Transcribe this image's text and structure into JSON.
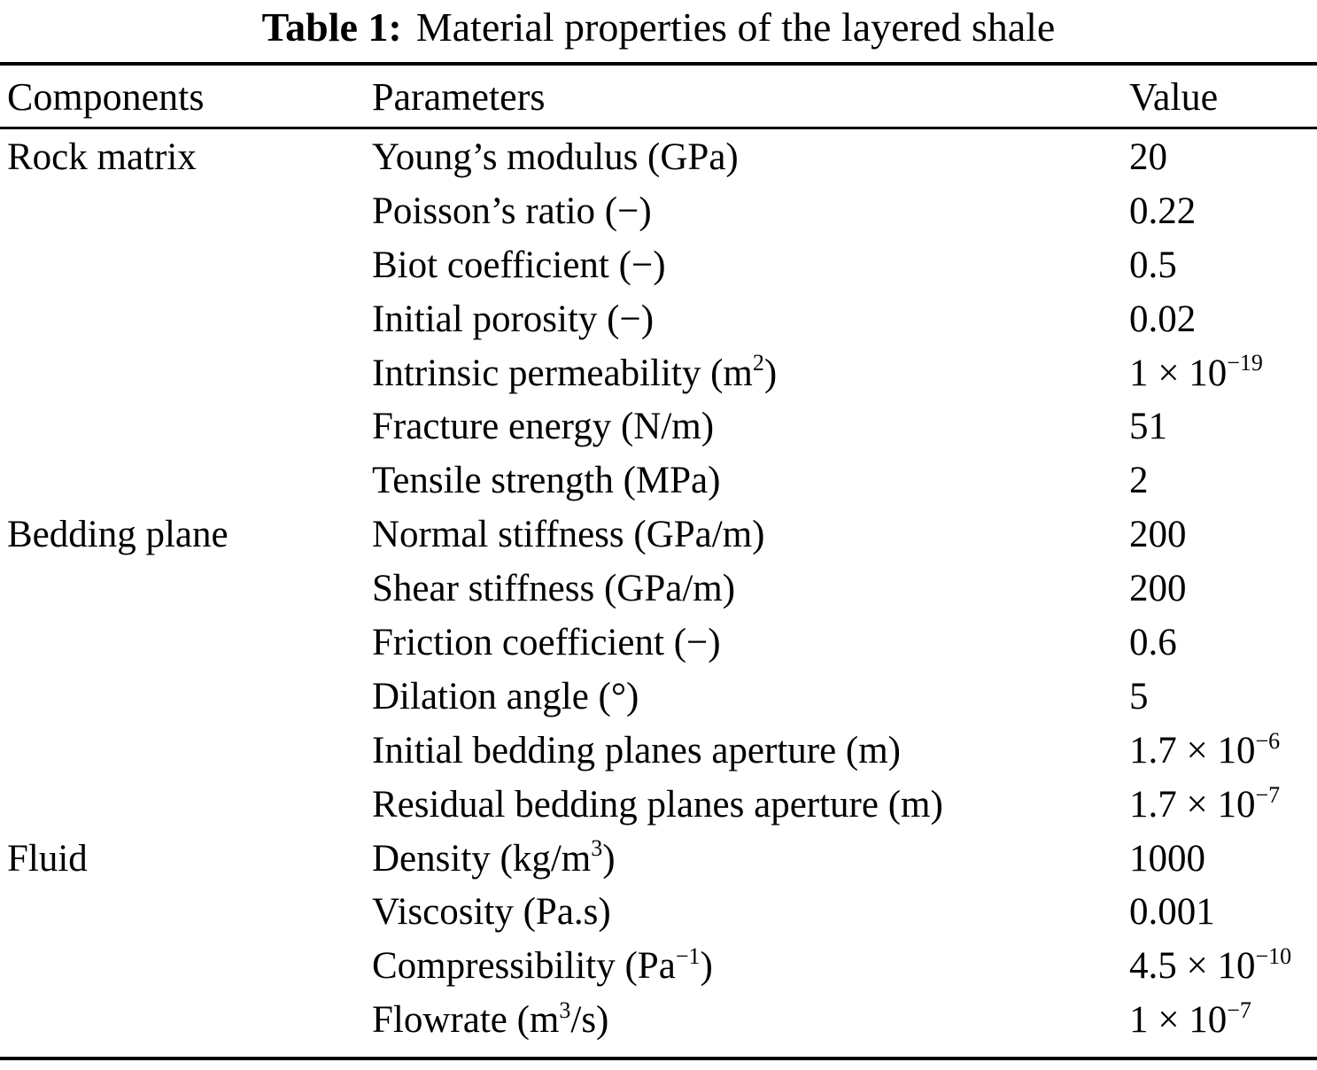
{
  "title": {
    "label": "Table 1:",
    "text": "Material properties of the layered shale"
  },
  "header": {
    "components": "Components",
    "parameters": "Parameters",
    "value": "Value"
  },
  "rows": [
    {
      "component": "Rock matrix",
      "param_main": "Young’s modulus (GPa)",
      "param_sup": "",
      "param_tail": "",
      "value_main": "20",
      "value_sup": ""
    },
    {
      "component": "",
      "param_main": "Poisson’s ratio (−)",
      "param_sup": "",
      "param_tail": "",
      "value_main": "0.22",
      "value_sup": ""
    },
    {
      "component": "",
      "param_main": "Biot coefficient (−)",
      "param_sup": "",
      "param_tail": "",
      "value_main": "0.5",
      "value_sup": ""
    },
    {
      "component": "",
      "param_main": "Initial porosity (−)",
      "param_sup": "",
      "param_tail": "",
      "value_main": "0.02",
      "value_sup": ""
    },
    {
      "component": "",
      "param_main": "Intrinsic permeability (m",
      "param_sup": "2",
      "param_tail": ")",
      "value_main": "1 × 10",
      "value_sup": "−19"
    },
    {
      "component": "",
      "param_main": "Fracture energy (N/m)",
      "param_sup": "",
      "param_tail": "",
      "value_main": "51",
      "value_sup": ""
    },
    {
      "component": "",
      "param_main": "Tensile strength (MPa)",
      "param_sup": "",
      "param_tail": "",
      "value_main": "2",
      "value_sup": ""
    },
    {
      "component": "Bedding plane",
      "param_main": "Normal stiffness (GPa/m)",
      "param_sup": "",
      "param_tail": "",
      "value_main": "200",
      "value_sup": ""
    },
    {
      "component": "",
      "param_main": "Shear stiffness (GPa/m)",
      "param_sup": "",
      "param_tail": "",
      "value_main": "200",
      "value_sup": ""
    },
    {
      "component": "",
      "param_main": "Friction coefficient (−)",
      "param_sup": "",
      "param_tail": "",
      "value_main": "0.6",
      "value_sup": ""
    },
    {
      "component": "",
      "param_main": "Dilation angle (°)",
      "param_sup": "",
      "param_tail": "",
      "value_main": "5",
      "value_sup": ""
    },
    {
      "component": "",
      "param_main": "Initial bedding planes aperture (m)",
      "param_sup": "",
      "param_tail": "",
      "value_main": "1.7 × 10",
      "value_sup": "−6"
    },
    {
      "component": "",
      "param_main": "Residual bedding planes aperture (m)",
      "param_sup": "",
      "param_tail": "",
      "value_main": "1.7 × 10",
      "value_sup": "−7"
    },
    {
      "component": "Fluid",
      "param_main": "Density (kg/m",
      "param_sup": "3",
      "param_tail": ")",
      "value_main": "1000",
      "value_sup": ""
    },
    {
      "component": "",
      "param_main": "Viscosity (Pa.s)",
      "param_sup": "",
      "param_tail": "",
      "value_main": "0.001",
      "value_sup": ""
    },
    {
      "component": "",
      "param_main": "Compressibility (Pa",
      "param_sup": "−1",
      "param_tail": ")",
      "value_main": "4.5 × 10",
      "value_sup": "−10"
    },
    {
      "component": "",
      "param_main": "Flowrate (m",
      "param_sup": "3",
      "param_tail": "/s)",
      "value_main": "1 × 10",
      "value_sup": "−7"
    }
  ]
}
